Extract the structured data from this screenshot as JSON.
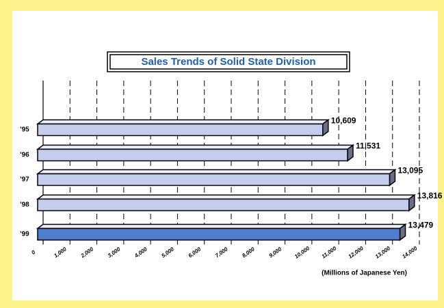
{
  "chart_data": {
    "type": "bar",
    "orientation": "horizontal",
    "title": "Sales Trends of Solid State Division",
    "x_label": "(Millions of Japanese Yen)",
    "categories": [
      "'95",
      "'96",
      "'97",
      "'98",
      "'99"
    ],
    "values": [
      10609,
      11531,
      13095,
      13816,
      13479
    ],
    "value_labels": [
      "10,609",
      "11,531",
      "13,095",
      "13,816",
      "13,479"
    ],
    "colors": [
      "#c5cdef",
      "#c5cdef",
      "#c5cdef",
      "#c5cdef",
      "#4f7fcc"
    ],
    "xlim": [
      0,
      14000
    ],
    "xticks": [
      0,
      {
        "value": 1000,
        "label": "1,000"
      },
      {
        "value": 2000,
        "label": "2,000"
      },
      {
        "value": 3000,
        "label": "3,000"
      },
      {
        "value": 4000,
        "label": "4,000"
      },
      {
        "value": 5000,
        "label": "5,000"
      },
      {
        "value": 6000,
        "label": "6,000"
      },
      {
        "value": 7000,
        "label": "7,000"
      },
      {
        "value": 8000,
        "label": "8,000"
      },
      {
        "value": 9000,
        "label": "9,000"
      },
      {
        "value": 10000,
        "label": "10,000"
      },
      {
        "value": 11000,
        "label": "11,000"
      },
      {
        "value": 12000,
        "label": "12,000"
      },
      {
        "value": 13000,
        "label": "13,000"
      },
      {
        "value": 14000,
        "label": "14,000"
      }
    ],
    "grid": true
  }
}
